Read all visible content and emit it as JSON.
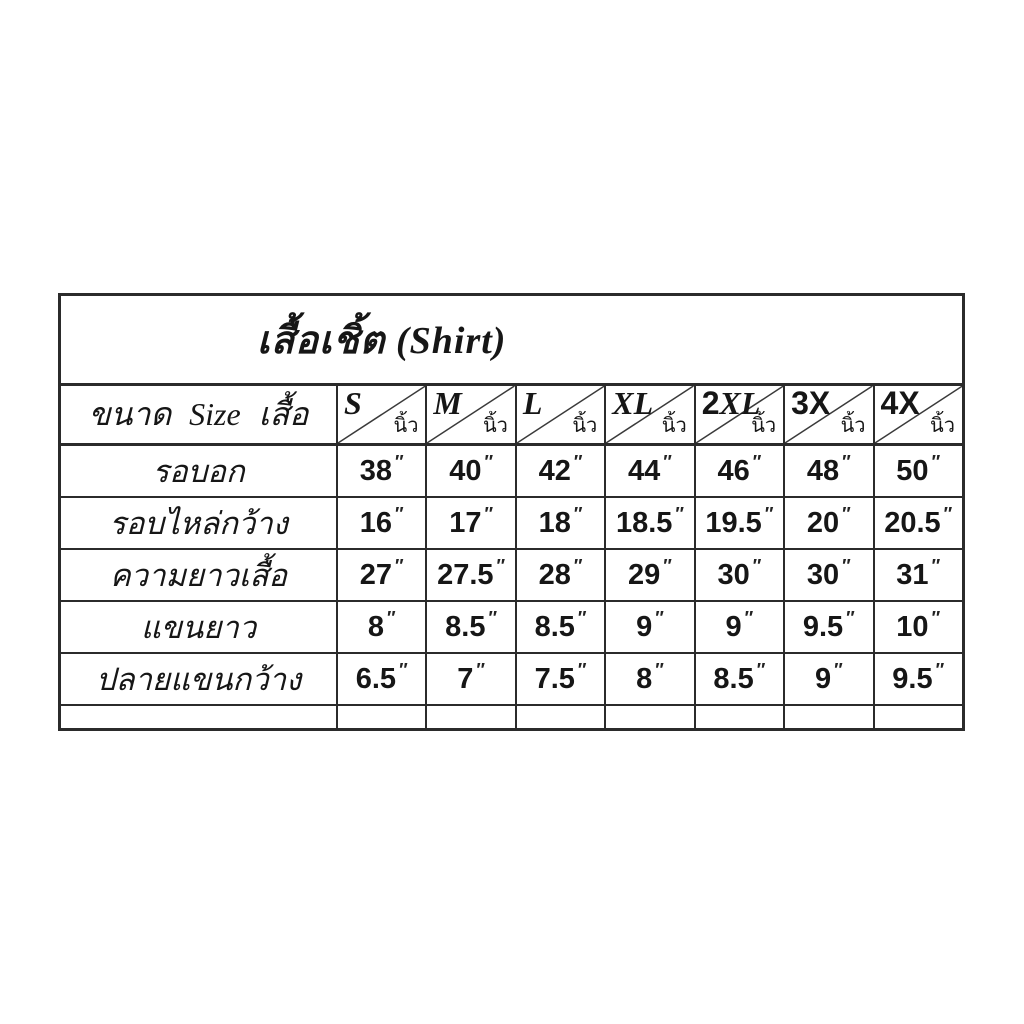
{
  "page": {
    "background_color": "#ffffff",
    "border_color": "#2b2b2b"
  },
  "chart": {
    "title": "เสื้อเชิ้ต  (Shirt)",
    "corner_label": "ขนาด Size เสื้อ",
    "unit_label": "นิ้ว",
    "inch_mark": "″",
    "columns": [
      {
        "label": "S",
        "style": "serif"
      },
      {
        "label": "M",
        "style": "serif"
      },
      {
        "label": "L",
        "style": "serif"
      },
      {
        "label": "XL",
        "style": "serif"
      },
      {
        "label": "2XL",
        "style": "mixed",
        "parts": [
          {
            "text": "2",
            "style": "sans"
          },
          {
            "text": "XL",
            "style": "serif"
          }
        ]
      },
      {
        "label": "3X",
        "style": "sans"
      },
      {
        "label": "4X",
        "style": "sans"
      }
    ],
    "rows": [
      {
        "label": "รอบอก",
        "values": [
          "38",
          "40",
          "42",
          "44",
          "46",
          "48",
          "50"
        ]
      },
      {
        "label": "รอบไหล่กว้าง",
        "values": [
          "16",
          "17",
          "18",
          "18.5",
          "19.5",
          "20",
          "20.5"
        ]
      },
      {
        "label": "ความยาวเสื้อ",
        "values": [
          "27",
          "27.5",
          "28",
          "29",
          "30",
          "30",
          "31"
        ]
      },
      {
        "label": "แขนยาว",
        "values": [
          "8",
          "8.5",
          "8.5",
          "9",
          "9",
          "9.5",
          "10"
        ]
      },
      {
        "label": "ปลายแขนกว้าง",
        "values": [
          "6.5",
          "7",
          "7.5",
          "8",
          "8.5",
          "9",
          "9.5"
        ]
      },
      {
        "label": "",
        "values": [
          "",
          "",
          "",
          "",
          "",
          "",
          ""
        ]
      }
    ]
  }
}
